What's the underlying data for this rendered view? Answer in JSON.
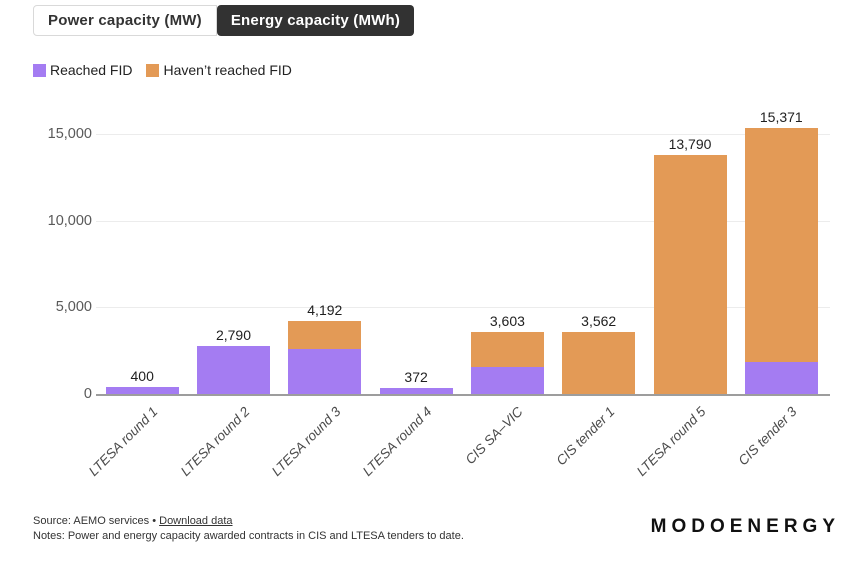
{
  "toggle": {
    "options": [
      {
        "label": "Power capacity (MW)",
        "selected": false
      },
      {
        "label": "Energy capacity (MWh)",
        "selected": true
      }
    ]
  },
  "colors": {
    "reached_fid": "#a47cf2",
    "not_reached_fid": "#e39a56",
    "selected_toggle_bg": "#323232",
    "axis_line": "#9d9d9d",
    "gridline": "#ececec"
  },
  "chart_data": {
    "type": "bar",
    "stacked": true,
    "categories": [
      "LTESA round 1",
      "LTESA round 2",
      "LTESA round 3",
      "LTESA round 4",
      "CIS SA–VIC",
      "CIS tender 1",
      "LTESA round 5",
      "CIS tender 3"
    ],
    "series": [
      {
        "name": "Reached FID",
        "color": "#a47cf2",
        "values": [
          400,
          2790,
          2575,
          372,
          1540,
          0,
          0,
          1850
        ]
      },
      {
        "name": "Haven’t reached FID",
        "color": "#e39a56",
        "values": [
          0,
          0,
          1617,
          0,
          2063,
          3562,
          13790,
          13521
        ]
      }
    ],
    "totals": [
      400,
      2790,
      4192,
      372,
      3603,
      3562,
      13790,
      15371
    ],
    "total_labels": [
      "400",
      "2,790",
      "4,192",
      "372",
      "3,603",
      "3,562",
      "13,790",
      "15,371"
    ],
    "ylim": [
      0,
      16000
    ],
    "yticks": [
      {
        "value": 0,
        "label": "0"
      },
      {
        "value": 5000,
        "label": "5,000"
      },
      {
        "value": 10000,
        "label": "10,000"
      },
      {
        "value": 15000,
        "label": "15,000"
      }
    ],
    "grid": true,
    "legend_position": "top-left",
    "title": "",
    "xlabel": "",
    "ylabel": ""
  },
  "footer": {
    "source_prefix": "Source: AEMO services •",
    "download_link": "Download data",
    "notes": "Notes: Power and energy capacity awarded contracts in CIS and LTESA tenders to date."
  },
  "logo": "MODOENERGY"
}
